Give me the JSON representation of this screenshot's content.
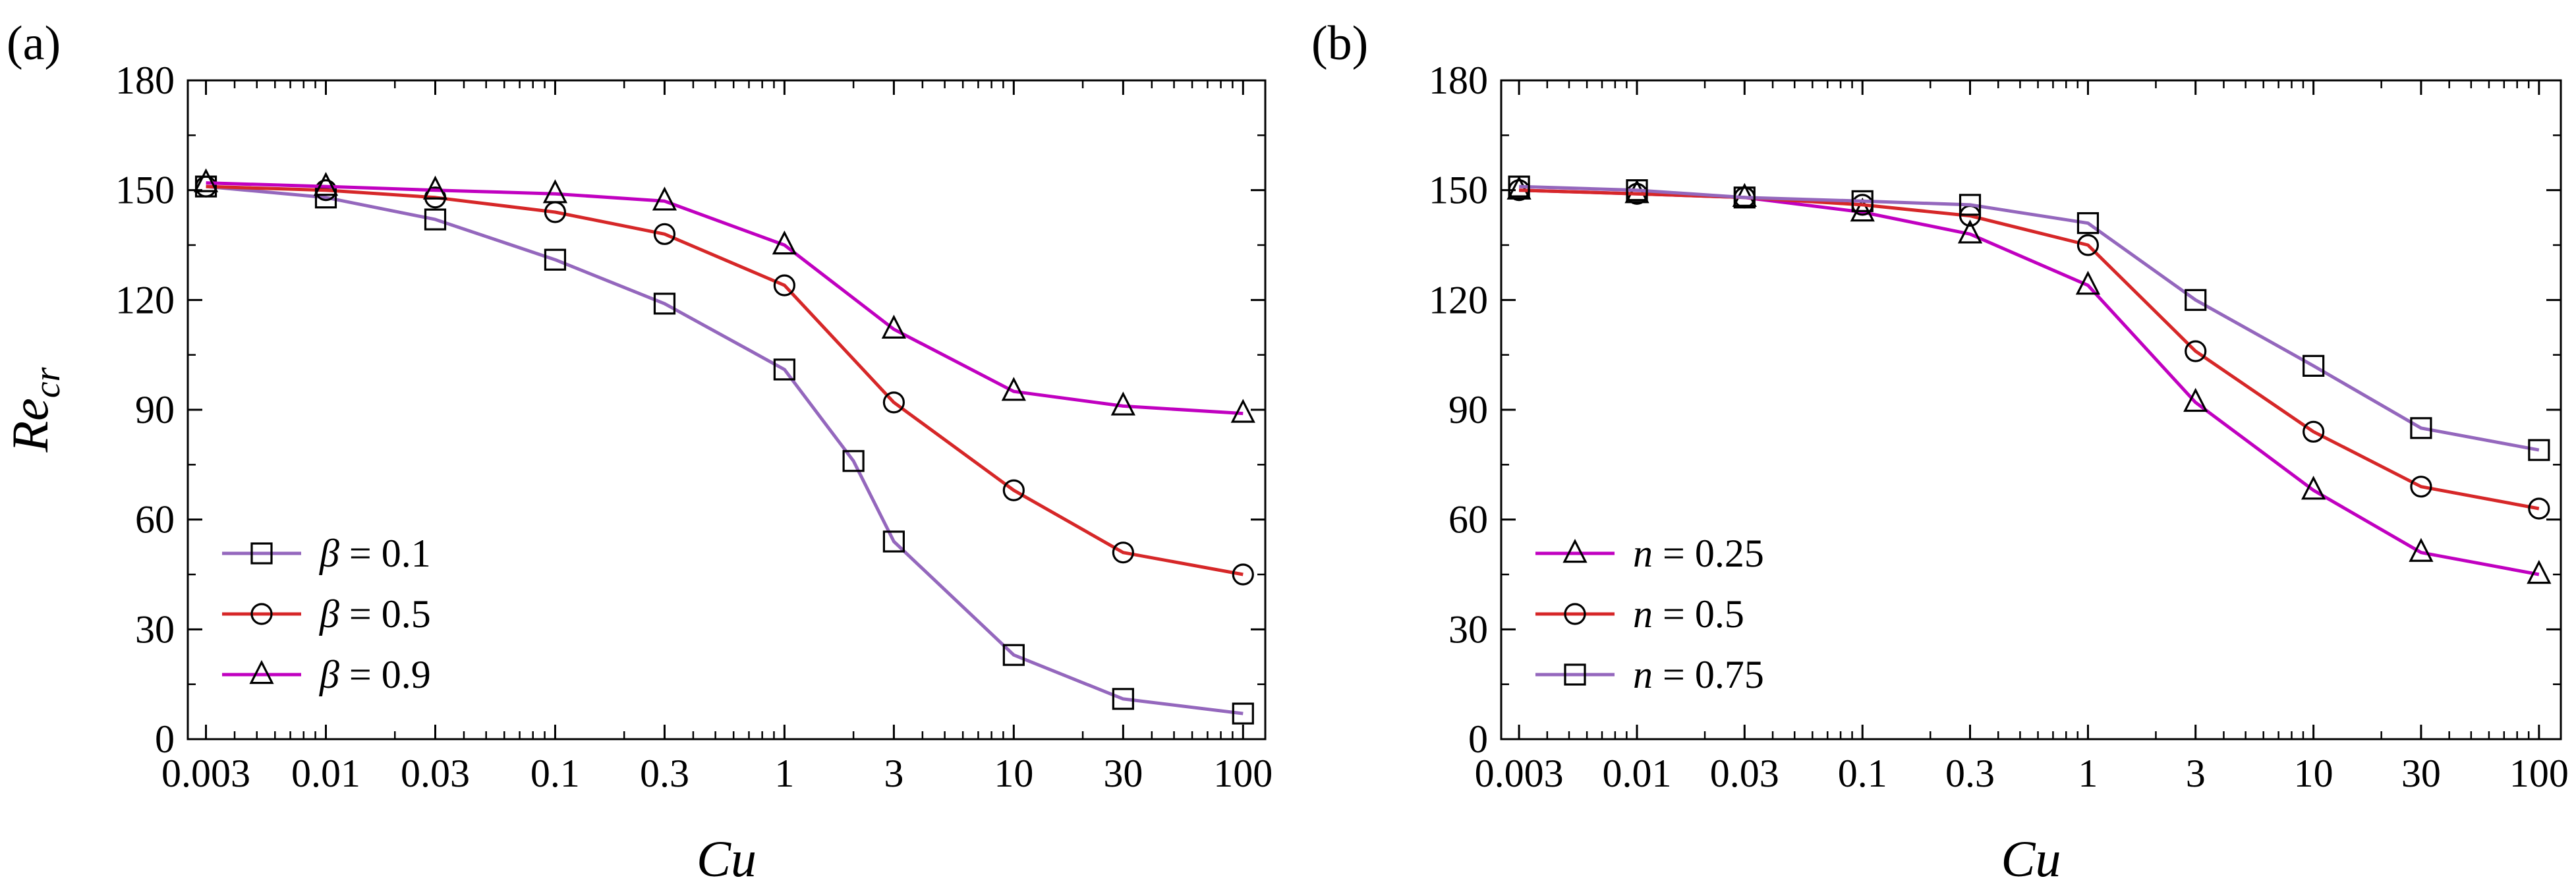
{
  "chart_data": [
    {
      "type": "line",
      "panel_label": "(a)",
      "xlabel": "Cu",
      "ylabel": "Re",
      "ylabel_subscript": "cr",
      "x_scale": "log",
      "xlim": [
        0.0025,
        125
      ],
      "ylim": [
        0,
        180
      ],
      "x_ticks": [
        0.003,
        0.01,
        0.03,
        0.1,
        0.3,
        1,
        3,
        10,
        30,
        100
      ],
      "x_tick_labels": [
        "0.003",
        "0.01",
        "0.03",
        "0.1",
        "0.3",
        "1",
        "3",
        "10",
        "30",
        "100"
      ],
      "y_ticks": [
        0,
        30,
        60,
        90,
        120,
        150,
        180
      ],
      "y_tick_labels": [
        "0",
        "30",
        "60",
        "90",
        "120",
        "150",
        "180"
      ],
      "grid": false,
      "legend_position": "bottom-left",
      "series": [
        {
          "name": "β = 0.1",
          "legend_symbol": "β",
          "legend_value": " = 0.1",
          "marker": "square",
          "color": "#9467bd",
          "x": [
            0.003,
            0.01,
            0.03,
            0.1,
            0.3,
            1,
            2,
            3,
            10,
            30,
            100
          ],
          "y": [
            151,
            148,
            142,
            131,
            119,
            101,
            76,
            54,
            23,
            11,
            7
          ]
        },
        {
          "name": "β = 0.5",
          "legend_symbol": "β",
          "legend_value": " = 0.5",
          "marker": "circle",
          "color": "#d62728",
          "x": [
            0.003,
            0.01,
            0.03,
            0.1,
            0.3,
            1,
            3,
            10,
            30,
            100
          ],
          "y": [
            151,
            150,
            148,
            144,
            138,
            124,
            92,
            68,
            51,
            45
          ]
        },
        {
          "name": "β = 0.9",
          "legend_symbol": "β",
          "legend_value": " = 0.9",
          "marker": "triangle",
          "color": "#c000c0",
          "x": [
            0.003,
            0.01,
            0.03,
            0.1,
            0.3,
            1,
            3,
            10,
            30,
            100
          ],
          "y": [
            152,
            151,
            150,
            149,
            147,
            135,
            112,
            95,
            91,
            89
          ]
        }
      ]
    },
    {
      "type": "line",
      "panel_label": "(b)",
      "xlabel": "Cu",
      "x_scale": "log",
      "xlim": [
        0.0025,
        125
      ],
      "ylim": [
        0,
        180
      ],
      "x_ticks": [
        0.003,
        0.01,
        0.03,
        0.1,
        0.3,
        1,
        3,
        10,
        30,
        100
      ],
      "x_tick_labels": [
        "0.003",
        "0.01",
        "0.03",
        "0.1",
        "0.3",
        "1",
        "3",
        "10",
        "30",
        "100"
      ],
      "y_ticks": [
        0,
        30,
        60,
        90,
        120,
        150,
        180
      ],
      "y_tick_labels": [
        "0",
        "30",
        "60",
        "90",
        "120",
        "150",
        "180"
      ],
      "grid": false,
      "legend_position": "bottom-left",
      "series": [
        {
          "name": "n = 0.25",
          "legend_symbol": "n",
          "legend_value": " = 0.25",
          "marker": "triangle",
          "color": "#c000c0",
          "x": [
            0.003,
            0.01,
            0.03,
            0.1,
            0.3,
            1,
            3,
            10,
            30,
            100
          ],
          "y": [
            150,
            149,
            148,
            144,
            138,
            124,
            92,
            68,
            51,
            45
          ]
        },
        {
          "name": "n = 0.5",
          "legend_symbol": "n",
          "legend_value": " = 0.5",
          "marker": "circle",
          "color": "#d62728",
          "x": [
            0.003,
            0.01,
            0.03,
            0.1,
            0.3,
            1,
            3,
            10,
            30,
            100
          ],
          "y": [
            150,
            149,
            148,
            146,
            143,
            135,
            106,
            84,
            69,
            63
          ]
        },
        {
          "name": "n = 0.75",
          "legend_symbol": "n",
          "legend_value": " = 0.75",
          "marker": "square",
          "color": "#9467bd",
          "x": [
            0.003,
            0.01,
            0.03,
            0.1,
            0.3,
            1,
            3,
            10,
            30,
            100
          ],
          "y": [
            151,
            150,
            148,
            147,
            146,
            141,
            120,
            102,
            85,
            79
          ]
        }
      ]
    }
  ]
}
